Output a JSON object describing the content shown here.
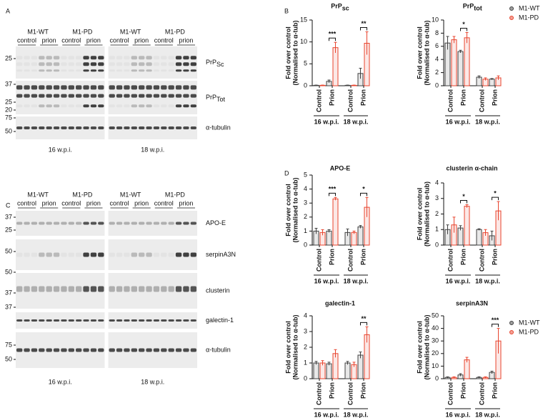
{
  "panel_labels": [
    "A",
    "B",
    "C",
    "D"
  ],
  "blots": [
    {
      "genotypes": [
        "M1-WT",
        "M1-PD",
        "M1-WT",
        "M1-PD"
      ],
      "conditions": [
        "control",
        "prion",
        "control",
        "prion",
        "control",
        "prion",
        "control",
        "prion"
      ],
      "rows": [
        {
          "name": "PrP",
          "sub": "Sc",
          "markers": [
            25
          ]
        },
        {
          "name": "PrP",
          "sub": "Tot",
          "markers": [
            37,
            25,
            20
          ]
        },
        {
          "name": "α-tubulin",
          "markers": [
            75,
            50
          ]
        }
      ],
      "timepoints": [
        "16 w.p.i.",
        "18 w.p.i."
      ]
    },
    {
      "genotypes": [
        "M1-WT",
        "M1-PD",
        "M1-WT",
        "M1-PD"
      ],
      "conditions": [
        "control",
        "prion",
        "control",
        "prion",
        "control",
        "prion",
        "control",
        "prion"
      ],
      "rows": [
        {
          "name": "APO-E",
          "markers": [
            37,
            25
          ]
        },
        {
          "name": "serpinA3N",
          "markers": [
            50
          ]
        },
        {
          "name": "clusterin",
          "markers": [
            50,
            37
          ]
        },
        {
          "name": "galectin-1",
          "markers": [
            37
          ]
        },
        {
          "name": "α-tubulin",
          "markers": [
            75,
            50
          ]
        }
      ],
      "timepoints": [
        "16 w.p.i.",
        "18 w.p.i."
      ]
    }
  ],
  "chart_data": [
    {
      "type": "bar",
      "title": "PrP",
      "title_sub": "sc",
      "ylabel": [
        "Fold over control",
        "(Normalised to α-tub)"
      ],
      "categories": [
        "Control",
        "Prion",
        "Control",
        "Prion"
      ],
      "groups": [
        "16 w.p.i.",
        "18 w.p.i."
      ],
      "series": [
        {
          "color": "#404040",
          "values": [
            0.1,
            1,
            0.1,
            2.8
          ],
          "errors": [
            0.05,
            0.3,
            0.05,
            1.2
          ]
        },
        {
          "color": "#e8442e",
          "values": [
            0.1,
            8.7,
            0.1,
            9.7
          ],
          "errors": [
            0.05,
            1.2,
            0.05,
            2.6
          ]
        }
      ],
      "ylim": [
        0,
        15
      ],
      "yticks": [
        0,
        5,
        10,
        15
      ],
      "significance": [
        null,
        "***",
        null,
        "**"
      ],
      "legend": false
    },
    {
      "type": "bar",
      "title": "PrP",
      "title_sub": "tot",
      "ylabel": [
        "Fold over control",
        "(Normalised to α-tub)"
      ],
      "categories": [
        "Control",
        "Prion",
        "Control",
        "Prion"
      ],
      "groups": [
        "16 w.p.i.",
        "18 w.p.i."
      ],
      "series": [
        {
          "name": "M1-WT",
          "color": "#404040",
          "values": [
            6.5,
            5.2,
            1.3,
            1.0
          ],
          "errors": [
            1,
            0.2,
            0.2,
            0.1
          ]
        },
        {
          "name": "M1-PD",
          "color": "#e8442e",
          "values": [
            7.0,
            7.3,
            1.0,
            1.2
          ],
          "errors": [
            0.5,
            0.8,
            0.2,
            0.3
          ]
        }
      ],
      "ylim": [
        0,
        10
      ],
      "yticks": [
        0,
        2,
        4,
        6,
        8,
        10
      ],
      "significance": [
        null,
        "*",
        null,
        null
      ],
      "legend": "right"
    },
    {
      "type": "bar",
      "title": "APO-E",
      "ylabel": [
        "Fold over control",
        "(Normalised to α-tub)"
      ],
      "categories": [
        "Control",
        "Prion",
        "Control",
        "Prion"
      ],
      "groups": [
        "16 w.p.i.",
        "18 w.p.i."
      ],
      "series": [
        {
          "color": "#404040",
          "values": [
            1,
            1,
            0.9,
            1.3
          ],
          "errors": [
            0.2,
            0.1,
            0.25,
            0.1
          ]
        },
        {
          "color": "#e8442e",
          "values": [
            0.9,
            3.3,
            0.9,
            2.7
          ],
          "errors": [
            0.2,
            0.1,
            0.1,
            0.7
          ]
        }
      ],
      "ylim": [
        0,
        5
      ],
      "yticks": [
        0,
        1,
        2,
        3,
        4,
        5
      ],
      "significance": [
        null,
        "***",
        null,
        "*"
      ],
      "legend": false
    },
    {
      "type": "bar",
      "title": "clusterin α-chain",
      "ylabel": [
        "Fold over control",
        "(Normalised to α-tub)"
      ],
      "categories": [
        "Control",
        "Prion",
        "Control",
        "Prion"
      ],
      "groups": [
        "16 w.p.i.",
        "18 w.p.i."
      ],
      "series": [
        {
          "color": "#404040",
          "values": [
            1,
            1.1,
            1,
            0.6
          ],
          "errors": [
            0.3,
            0.15,
            0.05,
            0.3
          ]
        },
        {
          "color": "#e8442e",
          "values": [
            1.3,
            2.5,
            0.8,
            2.2
          ],
          "errors": [
            0.5,
            0.1,
            0.2,
            0.6
          ]
        }
      ],
      "ylim": [
        0,
        4
      ],
      "yticks": [
        0,
        1,
        2,
        3,
        4
      ],
      "significance": [
        null,
        "*",
        null,
        "*"
      ],
      "legend": false
    },
    {
      "type": "bar",
      "title": "galectin-1",
      "ylabel": [
        "Fold over control",
        "(Normalised to α-tub)"
      ],
      "categories": [
        "Control",
        "Prion",
        "Control",
        "Prion"
      ],
      "groups": [
        "16 w.p.i.",
        "18 w.p.i."
      ],
      "series": [
        {
          "color": "#404040",
          "values": [
            1,
            0.95,
            1,
            1.5
          ],
          "errors": [
            0.1,
            0.1,
            0.1,
            0.2
          ]
        },
        {
          "color": "#e8442e",
          "values": [
            1,
            1.6,
            0.9,
            2.8
          ],
          "errors": [
            0.15,
            0.25,
            0.15,
            0.5
          ]
        }
      ],
      "ylim": [
        0,
        4
      ],
      "yticks": [
        0,
        1,
        2,
        3,
        4
      ],
      "significance": [
        null,
        null,
        null,
        "**"
      ],
      "legend": false
    },
    {
      "type": "bar",
      "title": "serpinA3N",
      "ylabel": [
        "Fold over control",
        "(Normalised to α-tub)"
      ],
      "categories": [
        "Control",
        "Prion",
        "Control",
        "Prion"
      ],
      "groups": [
        "16 w.p.i.",
        "18 w.p.i."
      ],
      "series": [
        {
          "name": "M1-WT",
          "color": "#404040",
          "values": [
            1,
            3,
            1,
            5
          ],
          "errors": [
            0.5,
            1,
            0.5,
            1
          ]
        },
        {
          "name": "M1-PD",
          "color": "#e8442e",
          "values": [
            1,
            15,
            1,
            30
          ],
          "errors": [
            0.5,
            2,
            0.5,
            10
          ]
        }
      ],
      "ylim": [
        0,
        50
      ],
      "yticks": [
        0,
        10,
        20,
        30,
        40,
        50
      ],
      "significance": [
        null,
        null,
        null,
        "***"
      ],
      "legend": "right"
    }
  ]
}
